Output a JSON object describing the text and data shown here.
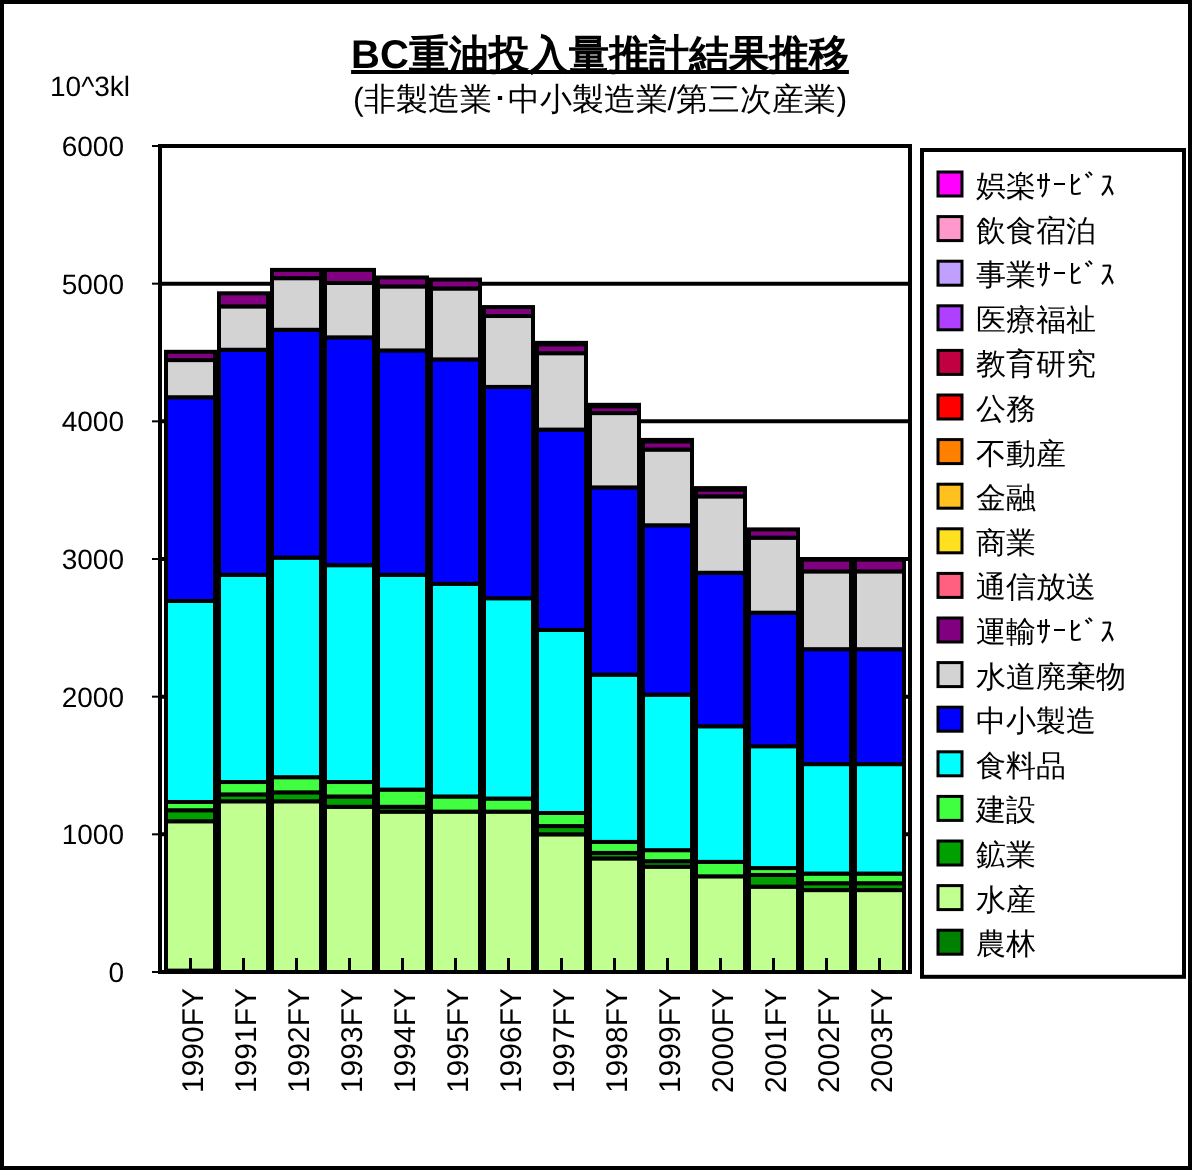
{
  "chart_data": {
    "type": "bar",
    "title": "BC重油投入量推計結果推移",
    "subtitle": "(非製造業･中小製造業/第三次産業)",
    "ylabel": "10^3kl",
    "categories": [
      "1990FY",
      "1991FY",
      "1992FY",
      "1993FY",
      "1994FY",
      "1995FY",
      "1996FY",
      "1997FY",
      "1998FY",
      "1999FY",
      "2000FY",
      "2001FY",
      "2002FY",
      "2003FY"
    ],
    "stacked": true,
    "ylim": [
      0,
      6000
    ],
    "yticks": [
      0,
      1000,
      2000,
      3000,
      4000,
      5000,
      6000
    ],
    "grid": "y",
    "legend": "right",
    "series": [
      {
        "name": "農林",
        "color": "#008000",
        "values": [
          10,
          0,
          0,
          0,
          0,
          0,
          0,
          0,
          0,
          0,
          0,
          0,
          0,
          0
        ]
      },
      {
        "name": "水産",
        "color": "#c0ff90",
        "values": [
          1085,
          1240,
          1240,
          1200,
          1165,
          1165,
          1165,
          1000,
          825,
          765,
          695,
          620,
          595,
          595
        ]
      },
      {
        "name": "鉱業",
        "color": "#00a000",
        "values": [
          80,
          50,
          65,
          75,
          35,
          null,
          null,
          60,
          40,
          40,
          null,
          85,
          50,
          50
        ]
      },
      {
        "name": "建設",
        "color": "#40ff40",
        "values": [
          60,
          90,
          110,
          105,
          125,
          110,
          95,
          95,
          80,
          80,
          105,
          50,
          70,
          70
        ]
      },
      {
        "name": "食料品",
        "color": "#00ffff",
        "values": [
          1460,
          1505,
          1595,
          1575,
          1560,
          1545,
          1455,
          1330,
          1215,
          1130,
          985,
          885,
          795,
          795
        ]
      },
      {
        "name": "中小製造",
        "color": "#0000ff",
        "values": [
          1480,
          1635,
          1655,
          1655,
          1630,
          1630,
          1535,
          1455,
          1360,
          1230,
          1115,
          970,
          835,
          835
        ]
      },
      {
        "name": "水道廃棄物",
        "color": "#d3d3d3",
        "values": [
          270,
          315,
          375,
          395,
          465,
          515,
          515,
          555,
          540,
          550,
          555,
          545,
          565,
          565
        ]
      },
      {
        "name": "運輸ｻｰﾋﾞｽ",
        "color": "#800080",
        "values": [
          60,
          95,
          60,
          95,
          65,
          65,
          65,
          65,
          50,
          60,
          50,
          60,
          85,
          85
        ]
      },
      {
        "name": "通信放送",
        "color": "#ff6080",
        "values": [
          0,
          0,
          0,
          0,
          0,
          0,
          0,
          0,
          0,
          0,
          0,
          0,
          0,
          0
        ]
      },
      {
        "name": "商業",
        "color": "#ffe020",
        "values": [
          0,
          0,
          0,
          0,
          0,
          0,
          0,
          0,
          0,
          0,
          0,
          0,
          0,
          0
        ]
      },
      {
        "name": "金融",
        "color": "#ffc020",
        "values": [
          0,
          0,
          0,
          0,
          0,
          0,
          0,
          0,
          0,
          0,
          0,
          0,
          0,
          0
        ]
      },
      {
        "name": "不動産",
        "color": "#ff8000",
        "values": [
          0,
          0,
          0,
          0,
          0,
          0,
          0,
          0,
          0,
          0,
          0,
          0,
          0,
          0
        ]
      },
      {
        "name": "公務",
        "color": "#ff0000",
        "values": [
          0,
          0,
          0,
          0,
          0,
          0,
          0,
          0,
          0,
          0,
          0,
          0,
          0,
          0
        ]
      },
      {
        "name": "教育研究",
        "color": "#c00040",
        "values": [
          0,
          0,
          0,
          0,
          0,
          0,
          0,
          0,
          0,
          0,
          0,
          0,
          0,
          0
        ]
      },
      {
        "name": "医療福祉",
        "color": "#b040ff",
        "values": [
          0,
          0,
          0,
          0,
          0,
          0,
          0,
          0,
          0,
          0,
          0,
          0,
          0,
          0
        ]
      },
      {
        "name": "事業ｻｰﾋﾞｽ",
        "color": "#c0a0ff",
        "values": [
          0,
          0,
          0,
          0,
          0,
          0,
          0,
          0,
          0,
          0,
          0,
          0,
          0,
          0
        ]
      },
      {
        "name": "飲食宿泊",
        "color": "#ff99cc",
        "values": [
          0,
          0,
          0,
          0,
          0,
          0,
          0,
          0,
          0,
          0,
          0,
          0,
          0,
          0
        ]
      },
      {
        "name": "娯楽ｻｰﾋﾞｽ",
        "color": "#ff00ff",
        "values": [
          0,
          0,
          0,
          0,
          0,
          0,
          0,
          10,
          10,
          10,
          10,
          0,
          0,
          0
        ]
      }
    ]
  }
}
